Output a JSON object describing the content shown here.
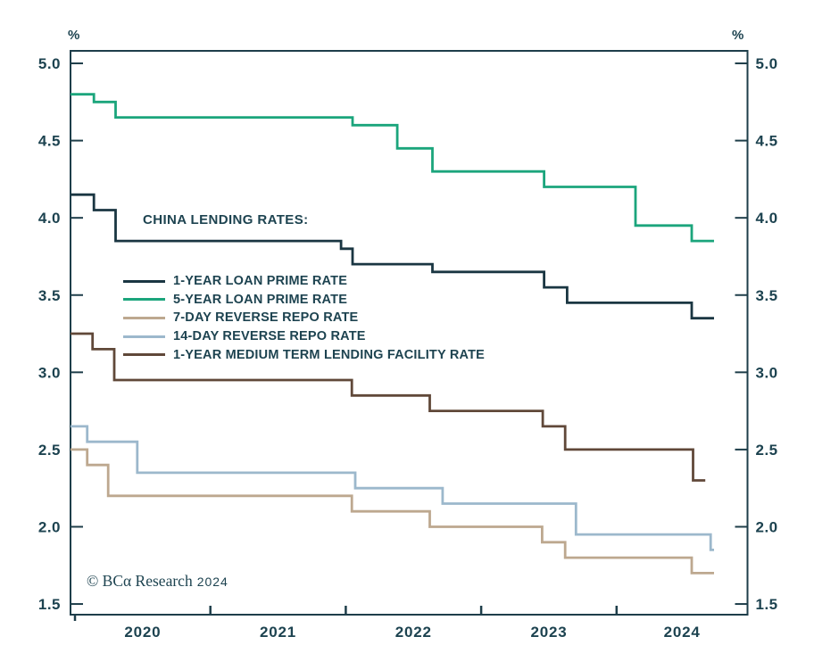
{
  "legend": {
    "title": "CHINA LENDING RATES:",
    "items": [
      {
        "label": "1-YEAR LOAN PRIME RATE",
        "color": "#1a3642"
      },
      {
        "label": "5-YEAR LOAN PRIME RATE",
        "color": "#1ba57c"
      },
      {
        "label": "7-DAY REVERSE REPO RATE",
        "color": "#bda88f"
      },
      {
        "label": "14-DAY REVERSE REPO RATE",
        "color": "#9cb8cc"
      },
      {
        "label": "1-YEAR MEDIUM TERM LENDING FACILITY RATE",
        "color": "#604839"
      }
    ]
  },
  "footer": {
    "copyright": "© BCα Research",
    "year": "2024"
  },
  "chart_data": {
    "type": "line",
    "step": true,
    "unit": "%",
    "title": "CHINA LENDING RATES",
    "xlim": [
      2019.967,
      2024.967
    ],
    "ylim": [
      1.431,
      5.081
    ],
    "y_ticks": [
      5.0,
      4.5,
      4.0,
      3.5,
      3.0,
      2.5,
      2.0,
      1.5
    ],
    "x_ticks": [
      2020,
      2021,
      2022,
      2023,
      2024
    ],
    "x_labels": [
      "2020",
      "2021",
      "2022",
      "2023",
      "2024"
    ],
    "grid": false,
    "legend_position": "inside-left",
    "axis_color": "#1e3e4a",
    "series": [
      {
        "name": "1-YEAR LOAN PRIME RATE",
        "color": "#1a3642",
        "end": 2024.72,
        "points": [
          [
            2019.967,
            4.15
          ],
          [
            2020.14,
            4.05
          ],
          [
            2020.3,
            3.85
          ],
          [
            2021.965,
            3.8
          ],
          [
            2022.05,
            3.7
          ],
          [
            2022.64,
            3.65
          ],
          [
            2023.465,
            3.55
          ],
          [
            2023.635,
            3.45
          ],
          [
            2024.555,
            3.35
          ]
        ]
      },
      {
        "name": "5-YEAR LOAN PRIME RATE",
        "color": "#1ba57c",
        "end": 2024.72,
        "points": [
          [
            2019.967,
            4.8
          ],
          [
            2020.14,
            4.75
          ],
          [
            2020.3,
            4.65
          ],
          [
            2022.05,
            4.6
          ],
          [
            2022.38,
            4.45
          ],
          [
            2022.64,
            4.3
          ],
          [
            2023.465,
            4.2
          ],
          [
            2024.14,
            3.95
          ],
          [
            2024.555,
            3.85
          ]
        ]
      },
      {
        "name": "7-DAY REVERSE REPO RATE",
        "color": "#bda88f",
        "end": 2024.72,
        "points": [
          [
            2019.967,
            2.5
          ],
          [
            2020.09,
            2.4
          ],
          [
            2020.245,
            2.2
          ],
          [
            2022.045,
            2.1
          ],
          [
            2022.62,
            2.0
          ],
          [
            2023.45,
            1.9
          ],
          [
            2023.62,
            1.8
          ],
          [
            2024.555,
            1.7
          ]
        ]
      },
      {
        "name": "14-DAY REVERSE REPO RATE",
        "color": "#9cb8cc",
        "end": 2024.72,
        "points": [
          [
            2019.967,
            2.65
          ],
          [
            2020.09,
            2.55
          ],
          [
            2020.46,
            2.35
          ],
          [
            2022.07,
            2.25
          ],
          [
            2022.715,
            2.15
          ],
          [
            2023.7,
            1.95
          ],
          [
            2024.695,
            1.85
          ]
        ]
      },
      {
        "name": "1-YEAR MEDIUM TERM LENDING FACILITY RATE",
        "color": "#604839",
        "end": 2024.655,
        "points": [
          [
            2019.967,
            3.25
          ],
          [
            2020.13,
            3.15
          ],
          [
            2020.29,
            2.95
          ],
          [
            2022.045,
            2.85
          ],
          [
            2022.62,
            2.75
          ],
          [
            2023.455,
            2.65
          ],
          [
            2023.62,
            2.5
          ],
          [
            2024.565,
            2.3
          ]
        ]
      }
    ]
  }
}
